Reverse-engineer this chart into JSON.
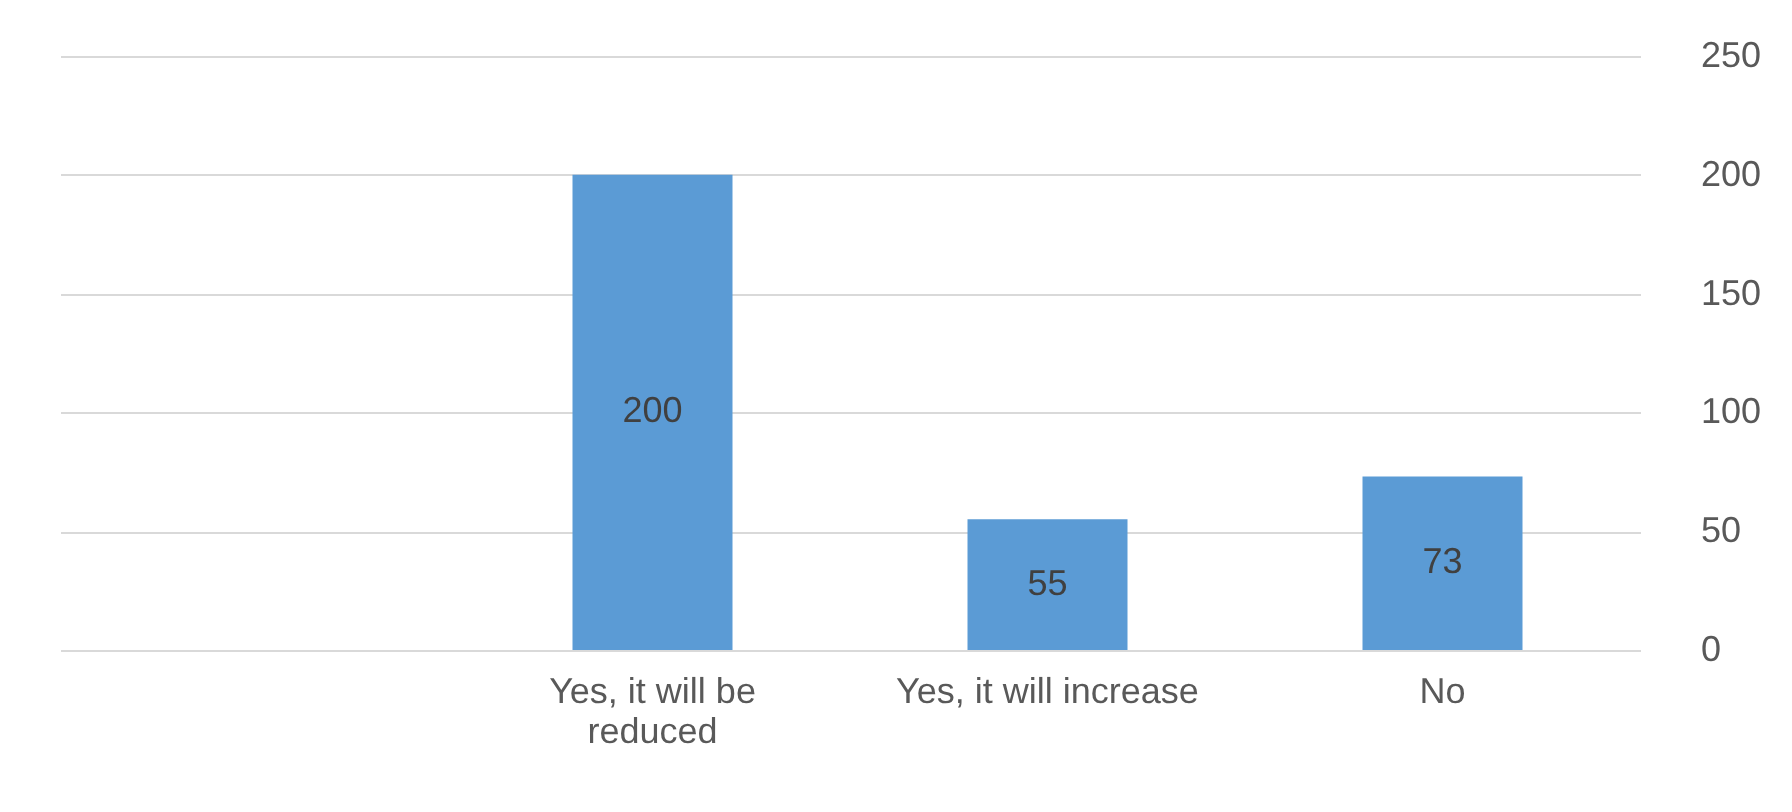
{
  "chart_data": {
    "type": "bar",
    "categories": [
      null,
      "Yes, it will be reduced",
      "Yes, it will increase",
      "No"
    ],
    "values": [
      null,
      200,
      55,
      73
    ],
    "color": "#5b9bd5",
    "ylim": [
      0,
      250
    ],
    "yticks": [
      0,
      50,
      100,
      150,
      200,
      250
    ],
    "grid": "y",
    "data_labels": true
  }
}
